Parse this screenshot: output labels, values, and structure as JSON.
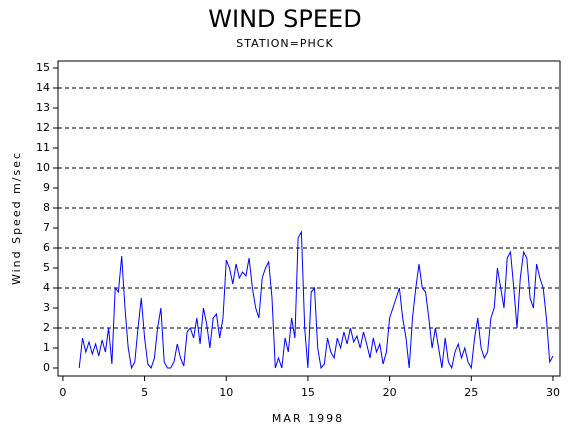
{
  "chart_data": {
    "type": "line",
    "title": "WIND SPEED",
    "subtitle": "STATION=PHCK",
    "x_label": "MAR 1998",
    "y_label": "Wind Speed m/sec",
    "xlim": [
      -0.3,
      30.43
    ],
    "ylim": [
      -0.4,
      15.35
    ],
    "xticks": [
      0,
      5,
      10,
      15,
      20,
      25,
      30
    ],
    "yticks": [
      0,
      1,
      2,
      3,
      4,
      5,
      6,
      7,
      8,
      9,
      10,
      11,
      12,
      13,
      14,
      15
    ],
    "grid_lines": [
      2,
      4,
      6,
      8,
      10,
      12,
      14
    ],
    "series": [
      {
        "color": "#0000ff",
        "x": [
          1.0,
          1.2,
          1.4,
          1.6,
          1.8,
          2.0,
          2.2,
          2.4,
          2.6,
          2.8,
          3.0,
          3.2,
          3.4,
          3.6,
          3.8,
          4.0,
          4.2,
          4.4,
          4.6,
          4.8,
          5.0,
          5.2,
          5.4,
          5.6,
          5.8,
          6.0,
          6.2,
          6.4,
          6.6,
          6.8,
          7.0,
          7.2,
          7.4,
          7.6,
          7.8,
          8.0,
          8.2,
          8.4,
          8.6,
          8.8,
          9.0,
          9.2,
          9.4,
          9.6,
          9.8,
          10.0,
          10.2,
          10.4,
          10.6,
          10.8,
          11.0,
          11.2,
          11.4,
          11.6,
          11.8,
          12.0,
          12.2,
          12.4,
          12.6,
          12.8,
          13.0,
          13.2,
          13.4,
          13.6,
          13.8,
          14.0,
          14.2,
          14.4,
          14.6,
          14.8,
          15.0,
          15.2,
          15.4,
          15.6,
          15.8,
          16.0,
          16.2,
          16.4,
          16.6,
          16.8,
          17.0,
          17.2,
          17.4,
          17.6,
          17.8,
          18.0,
          18.2,
          18.4,
          18.6,
          18.8,
          19.0,
          19.2,
          19.4,
          19.6,
          19.8,
          20.0,
          20.2,
          20.4,
          20.6,
          20.8,
          21.0,
          21.2,
          21.4,
          21.6,
          21.8,
          22.0,
          22.2,
          22.4,
          22.6,
          22.8,
          23.0,
          23.2,
          23.4,
          23.6,
          23.8,
          24.0,
          24.2,
          24.4,
          24.6,
          24.8,
          25.0,
          25.2,
          25.4,
          25.6,
          25.8,
          26.0,
          26.2,
          26.4,
          26.6,
          26.8,
          27.0,
          27.2,
          27.4,
          27.6,
          27.8,
          28.0,
          28.2,
          28.4,
          28.6,
          28.8,
          29.0,
          29.2,
          29.4,
          29.6,
          29.8,
          30.0
        ],
        "values": [
          0,
          1.5,
          0.8,
          1.3,
          0.7,
          1.2,
          0.6,
          1.4,
          0.8,
          2,
          0.2,
          4,
          3.8,
          5.6,
          3,
          1,
          0,
          0.3,
          2,
          3.5,
          1.5,
          0.2,
          0,
          0.5,
          2,
          3,
          0.3,
          0,
          0,
          0.3,
          1.2,
          0.5,
          0.1,
          1.8,
          2,
          1.5,
          2.5,
          1.2,
          3,
          2.2,
          1,
          2.5,
          2.7,
          1.5,
          2.5,
          5.4,
          5,
          4.2,
          5.2,
          4.5,
          4.8,
          4.6,
          5.5,
          4,
          3,
          2.5,
          4.5,
          5,
          5.3,
          3.5,
          0,
          0.5,
          0,
          1.5,
          0.8,
          2.5,
          1.5,
          6.5,
          6.8,
          2,
          0,
          3.8,
          4,
          1,
          0,
          0.2,
          1.5,
          0.8,
          0.5,
          1.5,
          1,
          1.8,
          1.2,
          2,
          1.3,
          1.6,
          1,
          1.8,
          1.2,
          0.5,
          1.5,
          0.8,
          1.2,
          0.2,
          0.8,
          2.5,
          3,
          3.5,
          4,
          2.5,
          1.5,
          0,
          2.5,
          4,
          5.2,
          4,
          3.8,
          2.5,
          1,
          2,
          1,
          0,
          1.5,
          0.3,
          0,
          0.8,
          1.2,
          0.5,
          1,
          0.3,
          0,
          1.5,
          2.5,
          1,
          0.5,
          0.8,
          2.5,
          3,
          5,
          4,
          3,
          5.5,
          5.8,
          4,
          2,
          4.5,
          5.8,
          5.5,
          3.5,
          3,
          5.2,
          4.5,
          4,
          2.5,
          0.3,
          0.6
        ]
      }
    ]
  }
}
